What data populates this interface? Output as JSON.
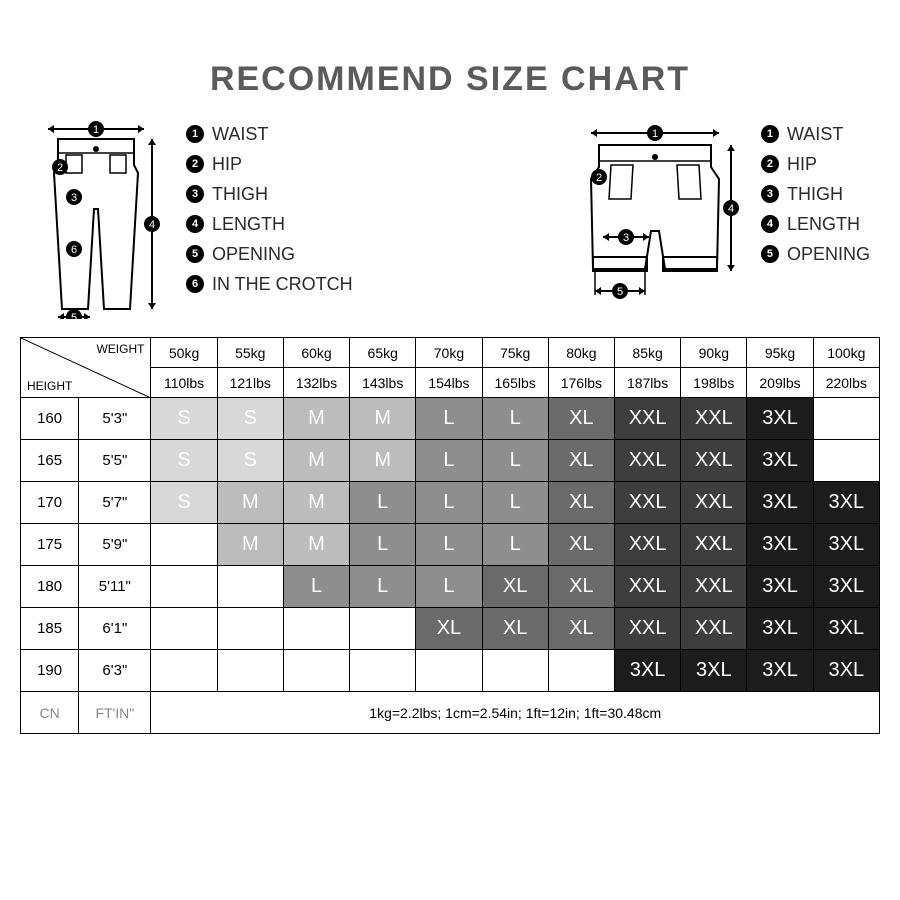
{
  "title": "RECOMMEND SIZE CHART",
  "legend_pants": [
    {
      "n": "1",
      "label": "WAIST"
    },
    {
      "n": "2",
      "label": "HIP"
    },
    {
      "n": "3",
      "label": "THIGH"
    },
    {
      "n": "4",
      "label": "LENGTH"
    },
    {
      "n": "5",
      "label": "OPENING"
    },
    {
      "n": "6",
      "label": "IN THE CROTCH"
    }
  ],
  "legend_shorts": [
    {
      "n": "1",
      "label": "WAIST"
    },
    {
      "n": "2",
      "label": "HIP"
    },
    {
      "n": "3",
      "label": "THIGH"
    },
    {
      "n": "4",
      "label": "LENGTH"
    },
    {
      "n": "5",
      "label": "OPENING"
    }
  ],
  "corner": {
    "weight": "WEIGHT",
    "height": "HEIGHT"
  },
  "weights_kg": [
    "50kg",
    "55kg",
    "60kg",
    "65kg",
    "70kg",
    "75kg",
    "80kg",
    "85kg",
    "90kg",
    "95kg",
    "100kg"
  ],
  "weights_lbs": [
    "110lbs",
    "121lbs",
    "132lbs",
    "143lbs",
    "154lbs",
    "165lbs",
    "176lbs",
    "187lbs",
    "198lbs",
    "209lbs",
    "220lbs"
  ],
  "heights": [
    {
      "cn": "160",
      "ft": "5'3\""
    },
    {
      "cn": "165",
      "ft": "5'5\""
    },
    {
      "cn": "170",
      "ft": "5'7\""
    },
    {
      "cn": "175",
      "ft": "5'9\""
    },
    {
      "cn": "180",
      "ft": "5'11\""
    },
    {
      "cn": "185",
      "ft": "6'1\""
    },
    {
      "cn": "190",
      "ft": "6'3\""
    }
  ],
  "footer": {
    "cn": "CN",
    "ft": "FT'IN\"",
    "note": "1kg=2.2lbs; 1cm=2.54in; 1ft=12in; 1ft=30.48cm"
  },
  "size_colors": {
    "S": "#d8d8d8",
    "M": "#bcbcbc",
    "L": "#8e8e8e",
    "XL": "#6b6b6b",
    "XXL": "#3e3e3e",
    "3XL": "#1c1c1c"
  },
  "grid": [
    [
      "S",
      "S",
      "M",
      "M",
      "L",
      "L",
      "XL",
      "XXL",
      "XXL",
      "3XL",
      ""
    ],
    [
      "S",
      "S",
      "M",
      "M",
      "L",
      "L",
      "XL",
      "XXL",
      "XXL",
      "3XL",
      ""
    ],
    [
      "S",
      "M",
      "M",
      "L",
      "L",
      "L",
      "XL",
      "XXL",
      "XXL",
      "3XL",
      "3XL"
    ],
    [
      "",
      "M",
      "M",
      "L",
      "L",
      "L",
      "XL",
      "XXL",
      "XXL",
      "3XL",
      "3XL"
    ],
    [
      "",
      "",
      "L",
      "L",
      "L",
      "XL",
      "XL",
      "XXL",
      "XXL",
      "3XL",
      "3XL"
    ],
    [
      "",
      "",
      "",
      "",
      "XL",
      "XL",
      "XL",
      "XXL",
      "XXL",
      "3XL",
      "3XL"
    ],
    [
      "",
      "",
      "",
      "",
      "",
      "",
      "",
      "3XL",
      "3XL",
      "3XL",
      "3XL"
    ]
  ],
  "col_widths": {
    "height_cn": 58,
    "height_ft": 72,
    "data": 66
  }
}
